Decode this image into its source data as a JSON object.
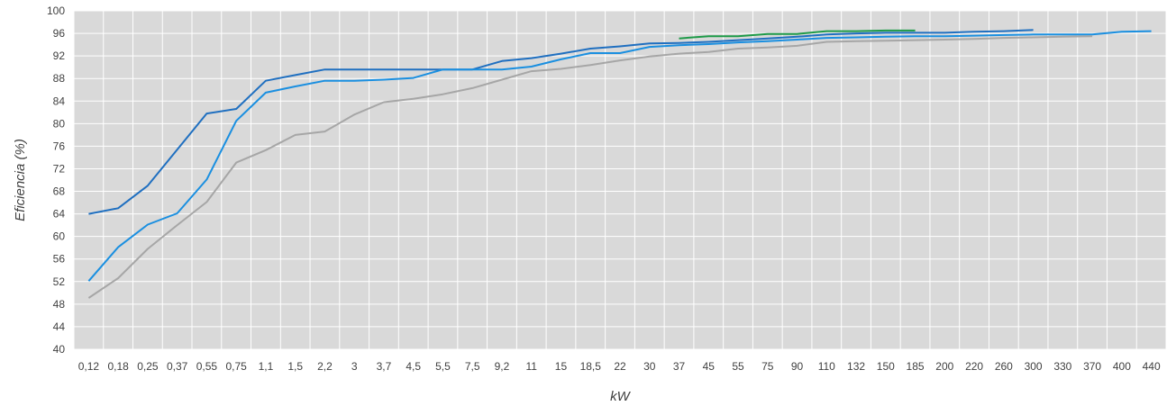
{
  "chart_data": {
    "type": "line",
    "title": "",
    "xlabel": "kW",
    "ylabel": "Eficiencia (%)",
    "ylim": [
      40,
      100
    ],
    "y_ticks": [
      "40",
      "44",
      "48",
      "52",
      "56",
      "60",
      "64",
      "68",
      "72",
      "76",
      "80",
      "84",
      "88",
      "92",
      "96",
      "100"
    ],
    "categories": [
      "0,12",
      "0,18",
      "0,25",
      "0,37",
      "0,55",
      "0,75",
      "1,1",
      "1,5",
      "2,2",
      "3",
      "3,7",
      "4,5",
      "5,5",
      "7,5",
      "9,2",
      "11",
      "15",
      "18,5",
      "22",
      "30",
      "37",
      "45",
      "55",
      "75",
      "90",
      "110",
      "132",
      "150",
      "185",
      "200",
      "220",
      "260",
      "300",
      "330",
      "370",
      "400",
      "440"
    ],
    "grid": true,
    "legend": "none",
    "plot_background": "#d9d9d9",
    "series": [
      {
        "color": "#1f6fc0",
        "values": [
          64,
          65,
          69,
          75.4,
          81.8,
          82.6,
          87.6,
          88.6,
          89.6,
          89.6,
          89.6,
          89.6,
          89.6,
          89.6,
          91.1,
          91.6,
          92.4,
          93.3,
          93.7,
          94.2,
          94.3,
          94.5,
          94.8,
          95.1,
          95.4,
          95.8,
          96.0,
          96.1,
          96.1,
          96.1,
          96.3,
          96.4,
          96.6,
          null,
          null,
          null,
          null
        ]
      },
      {
        "color": "#1a8fe0",
        "values": [
          52.1,
          58.1,
          62.1,
          64.1,
          70.1,
          80.5,
          85.5,
          86.6,
          87.6,
          87.6,
          87.8,
          88.1,
          89.6,
          89.6,
          89.6,
          90.1,
          91.4,
          92.5,
          92.5,
          93.6,
          93.9,
          94.1,
          94.4,
          94.6,
          94.9,
          95.2,
          95.3,
          95.4,
          95.5,
          95.5,
          95.6,
          95.7,
          95.8,
          95.8,
          95.8,
          96.3,
          96.4
        ]
      },
      {
        "color": "#a6a6a6",
        "values": [
          49.1,
          52.6,
          57.8,
          62.0,
          66.1,
          73.1,
          75.3,
          78.0,
          78.6,
          81.6,
          83.8,
          84.4,
          85.2,
          86.3,
          87.8,
          89.3,
          89.7,
          90.4,
          91.2,
          91.9,
          92.4,
          92.7,
          93.3,
          93.5,
          93.8,
          94.5,
          94.6,
          94.7,
          94.8,
          94.9,
          95.0,
          95.2,
          95.3,
          95.4,
          95.5,
          null,
          null
        ]
      },
      {
        "color": "#1e9a48",
        "values": [
          null,
          null,
          null,
          null,
          null,
          null,
          null,
          null,
          null,
          null,
          null,
          null,
          null,
          null,
          null,
          null,
          null,
          null,
          null,
          null,
          95.1,
          95.5,
          95.5,
          95.9,
          95.9,
          96.4,
          96.4,
          96.5,
          96.5,
          null,
          null,
          null,
          null,
          null,
          null,
          null,
          null
        ]
      }
    ]
  }
}
